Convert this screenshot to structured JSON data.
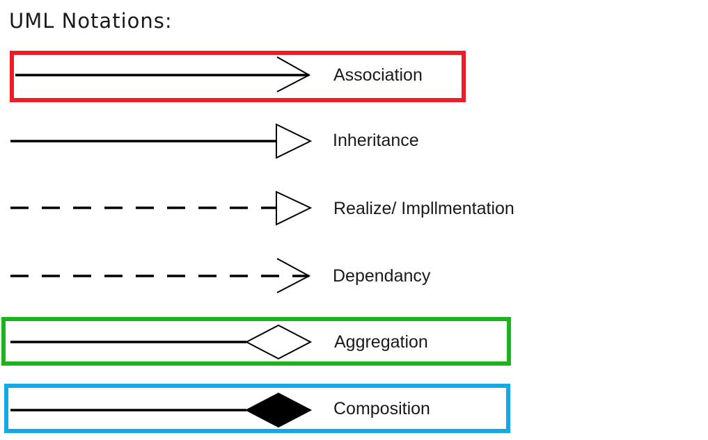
{
  "title": "UML Notations:",
  "notations": [
    {
      "label": "Association",
      "line": "solid",
      "head": "open-arrow",
      "highlight": "#ee1c24"
    },
    {
      "label": "Inheritance",
      "line": "solid",
      "head": "hollow-triangle",
      "highlight": null
    },
    {
      "label": "Realize/ Impllmentation",
      "line": "dashed",
      "head": "hollow-triangle",
      "highlight": null
    },
    {
      "label": "Dependancy",
      "line": "dashed",
      "head": "open-arrow",
      "highlight": null
    },
    {
      "label": "Aggregation",
      "line": "solid",
      "head": "hollow-diamond",
      "highlight": "#1db31d"
    },
    {
      "label": "Composition",
      "line": "solid",
      "head": "filled-diamond",
      "highlight": "#14a8e6"
    }
  ]
}
